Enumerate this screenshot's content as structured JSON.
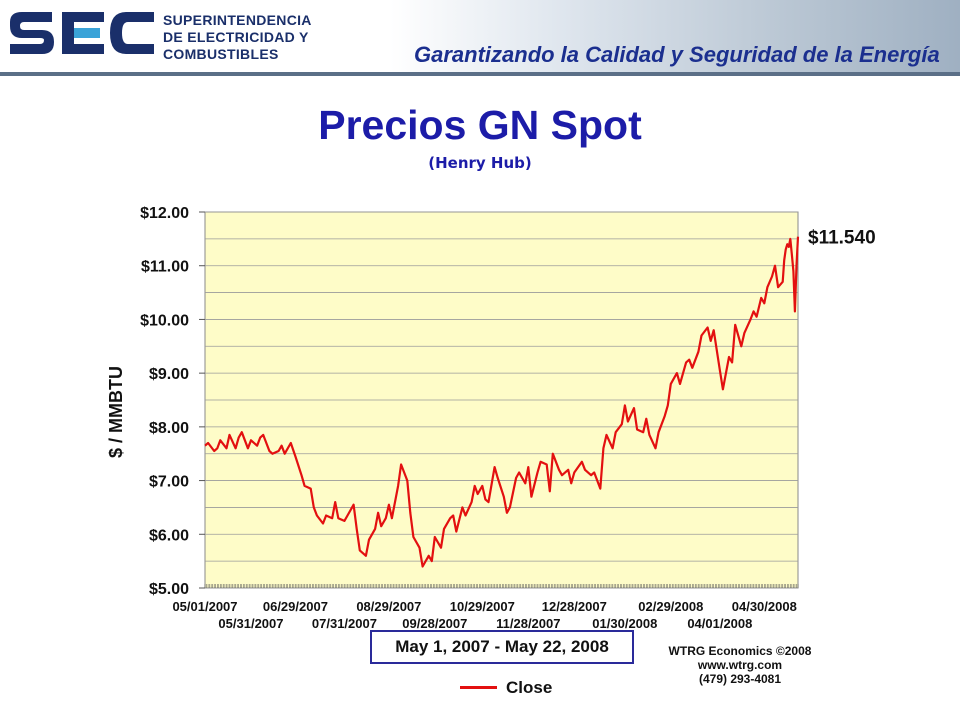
{
  "header": {
    "logo_text": "SEC",
    "org_lines": [
      "SUPERINTENDENCIA",
      "DE ELECTRICIDAD Y",
      "COMBUSTIBLES"
    ],
    "slogan": "Garantizando la Calidad y Seguridad de la Energía",
    "colors": {
      "logo_blue": "#1a2f6a",
      "logo_accent": "#3aa3d8",
      "slogan": "#1b2f8f"
    }
  },
  "title": "Precios GN Spot",
  "subtitle": "(Henry Hub)",
  "date_range_label": "May 1, 2007 - May 22, 2008",
  "credits": [
    "WTRG Economics  ©2008",
    "www.wtrg.com",
    "(479) 293-4081"
  ],
  "legend": {
    "label": "Close",
    "color": "#e31010"
  },
  "chart_data": {
    "type": "line",
    "title": "Precios GN Spot",
    "subtitle": "(Henry Hub)",
    "ylabel": "$ / MMBTU",
    "xlabel": "",
    "ylim": [
      5,
      12
    ],
    "yticks": [
      5,
      6,
      7,
      8,
      9,
      10,
      11,
      12
    ],
    "ytick_labels": [
      "$5.00",
      "$6.00",
      "$7.00",
      "$8.00",
      "$9.00",
      "$10.00",
      "$11.00",
      "$12.00"
    ],
    "xlim": [
      "2007-05-01",
      "2008-05-22"
    ],
    "xticks_upper": [
      "05/01/2007",
      "06/29/2007",
      "08/29/2007",
      "10/29/2007",
      "12/28/2007",
      "02/29/2008",
      "04/30/2008"
    ],
    "xticks_lower": [
      "05/31/2007",
      "07/31/2007",
      "09/28/2007",
      "11/28/2007",
      "01/30/2008",
      "04/01/2008"
    ],
    "grid": true,
    "background": "#fefcc8",
    "last_value_label": "$11.540",
    "series": [
      {
        "name": "Close",
        "color": "#e31010",
        "points": [
          [
            "2007-05-01",
            7.65
          ],
          [
            "2007-05-03",
            7.7
          ],
          [
            "2007-05-07",
            7.55
          ],
          [
            "2007-05-09",
            7.6
          ],
          [
            "2007-05-11",
            7.75
          ],
          [
            "2007-05-15",
            7.6
          ],
          [
            "2007-05-17",
            7.85
          ],
          [
            "2007-05-21",
            7.6
          ],
          [
            "2007-05-23",
            7.8
          ],
          [
            "2007-05-25",
            7.9
          ],
          [
            "2007-05-29",
            7.6
          ],
          [
            "2007-05-31",
            7.75
          ],
          [
            "2007-06-04",
            7.65
          ],
          [
            "2007-06-06",
            7.8
          ],
          [
            "2007-06-08",
            7.85
          ],
          [
            "2007-06-12",
            7.55
          ],
          [
            "2007-06-14",
            7.5
          ],
          [
            "2007-06-18",
            7.55
          ],
          [
            "2007-06-20",
            7.65
          ],
          [
            "2007-06-22",
            7.5
          ],
          [
            "2007-06-26",
            7.7
          ],
          [
            "2007-06-29",
            7.45
          ],
          [
            "2007-07-03",
            7.1
          ],
          [
            "2007-07-05",
            6.9
          ],
          [
            "2007-07-09",
            6.85
          ],
          [
            "2007-07-11",
            6.5
          ],
          [
            "2007-07-13",
            6.35
          ],
          [
            "2007-07-17",
            6.2
          ],
          [
            "2007-07-19",
            6.35
          ],
          [
            "2007-07-23",
            6.3
          ],
          [
            "2007-07-25",
            6.6
          ],
          [
            "2007-07-27",
            6.3
          ],
          [
            "2007-07-31",
            6.25
          ],
          [
            "2007-08-02",
            6.35
          ],
          [
            "2007-08-06",
            6.55
          ],
          [
            "2007-08-08",
            6.1
          ],
          [
            "2007-08-10",
            5.7
          ],
          [
            "2007-08-14",
            5.6
          ],
          [
            "2007-08-16",
            5.9
          ],
          [
            "2007-08-20",
            6.1
          ],
          [
            "2007-08-22",
            6.4
          ],
          [
            "2007-08-24",
            6.15
          ],
          [
            "2007-08-27",
            6.3
          ],
          [
            "2007-08-29",
            6.55
          ],
          [
            "2007-08-31",
            6.3
          ],
          [
            "2007-09-04",
            6.9
          ],
          [
            "2007-09-06",
            7.3
          ],
          [
            "2007-09-10",
            7.0
          ],
          [
            "2007-09-12",
            6.4
          ],
          [
            "2007-09-14",
            5.95
          ],
          [
            "2007-09-18",
            5.75
          ],
          [
            "2007-09-20",
            5.4
          ],
          [
            "2007-09-24",
            5.6
          ],
          [
            "2007-09-26",
            5.5
          ],
          [
            "2007-09-28",
            5.95
          ],
          [
            "2007-10-02",
            5.75
          ],
          [
            "2007-10-04",
            6.1
          ],
          [
            "2007-10-08",
            6.3
          ],
          [
            "2007-10-10",
            6.35
          ],
          [
            "2007-10-12",
            6.05
          ],
          [
            "2007-10-16",
            6.5
          ],
          [
            "2007-10-18",
            6.35
          ],
          [
            "2007-10-22",
            6.6
          ],
          [
            "2007-10-24",
            6.9
          ],
          [
            "2007-10-26",
            6.75
          ],
          [
            "2007-10-29",
            6.9
          ],
          [
            "2007-10-31",
            6.65
          ],
          [
            "2007-11-02",
            6.6
          ],
          [
            "2007-11-06",
            7.25
          ],
          [
            "2007-11-08",
            7.05
          ],
          [
            "2007-11-12",
            6.7
          ],
          [
            "2007-11-14",
            6.4
          ],
          [
            "2007-11-16",
            6.5
          ],
          [
            "2007-11-20",
            7.05
          ],
          [
            "2007-11-22",
            7.15
          ],
          [
            "2007-11-26",
            6.95
          ],
          [
            "2007-11-28",
            7.25
          ],
          [
            "2007-11-30",
            6.7
          ],
          [
            "2007-12-04",
            7.15
          ],
          [
            "2007-12-06",
            7.35
          ],
          [
            "2007-12-10",
            7.3
          ],
          [
            "2007-12-12",
            6.8
          ],
          [
            "2007-12-14",
            7.5
          ],
          [
            "2007-12-18",
            7.2
          ],
          [
            "2007-12-20",
            7.1
          ],
          [
            "2007-12-24",
            7.2
          ],
          [
            "2007-12-26",
            6.95
          ],
          [
            "2007-12-28",
            7.15
          ],
          [
            "2008-01-02",
            7.35
          ],
          [
            "2008-01-04",
            7.2
          ],
          [
            "2008-01-08",
            7.1
          ],
          [
            "2008-01-10",
            7.15
          ],
          [
            "2008-01-14",
            6.85
          ],
          [
            "2008-01-16",
            7.6
          ],
          [
            "2008-01-18",
            7.85
          ],
          [
            "2008-01-22",
            7.6
          ],
          [
            "2008-01-24",
            7.9
          ],
          [
            "2008-01-28",
            8.05
          ],
          [
            "2008-01-30",
            8.4
          ],
          [
            "2008-02-01",
            8.1
          ],
          [
            "2008-02-05",
            8.35
          ],
          [
            "2008-02-07",
            7.95
          ],
          [
            "2008-02-11",
            7.9
          ],
          [
            "2008-02-13",
            8.15
          ],
          [
            "2008-02-15",
            7.85
          ],
          [
            "2008-02-19",
            7.6
          ],
          [
            "2008-02-21",
            7.9
          ],
          [
            "2008-02-25",
            8.2
          ],
          [
            "2008-02-27",
            8.4
          ],
          [
            "2008-02-29",
            8.8
          ],
          [
            "2008-03-04",
            9.0
          ],
          [
            "2008-03-06",
            8.8
          ],
          [
            "2008-03-10",
            9.2
          ],
          [
            "2008-03-12",
            9.25
          ],
          [
            "2008-03-14",
            9.1
          ],
          [
            "2008-03-18",
            9.4
          ],
          [
            "2008-03-20",
            9.7
          ],
          [
            "2008-03-24",
            9.85
          ],
          [
            "2008-03-26",
            9.6
          ],
          [
            "2008-03-28",
            9.8
          ],
          [
            "2008-04-01",
            9.05
          ],
          [
            "2008-04-03",
            8.7
          ],
          [
            "2008-04-07",
            9.3
          ],
          [
            "2008-04-09",
            9.2
          ],
          [
            "2008-04-11",
            9.9
          ],
          [
            "2008-04-15",
            9.5
          ],
          [
            "2008-04-17",
            9.75
          ],
          [
            "2008-04-21",
            10.0
          ],
          [
            "2008-04-23",
            10.15
          ],
          [
            "2008-04-25",
            10.05
          ],
          [
            "2008-04-28",
            10.4
          ],
          [
            "2008-04-30",
            10.3
          ],
          [
            "2008-05-02",
            10.6
          ],
          [
            "2008-05-05",
            10.8
          ],
          [
            "2008-05-07",
            11.0
          ],
          [
            "2008-05-09",
            10.6
          ],
          [
            "2008-05-12",
            10.7
          ],
          [
            "2008-05-13",
            11.1
          ],
          [
            "2008-05-14",
            11.3
          ],
          [
            "2008-05-15",
            11.4
          ],
          [
            "2008-05-16",
            11.35
          ],
          [
            "2008-05-17",
            11.5
          ],
          [
            "2008-05-18",
            11.2
          ],
          [
            "2008-05-19",
            10.9
          ],
          [
            "2008-05-20",
            10.15
          ],
          [
            "2008-05-21",
            11.0
          ],
          [
            "2008-05-22",
            11.54
          ]
        ]
      }
    ]
  }
}
